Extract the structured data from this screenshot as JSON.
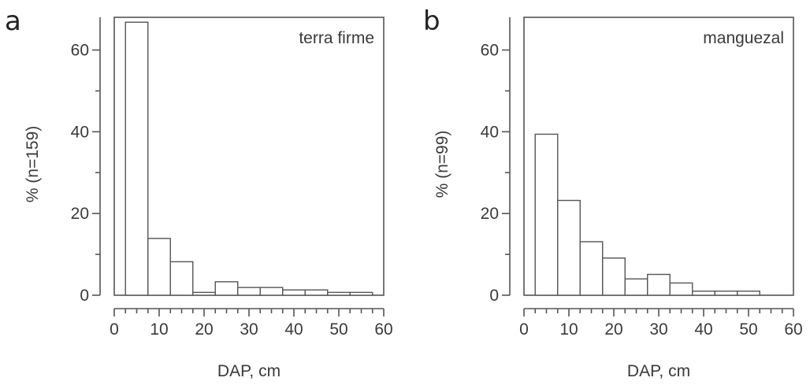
{
  "chart_data": [
    {
      "panel": "a",
      "type": "bar",
      "inset_label": "terra firme",
      "xlabel": "DAP, cm",
      "ylabel": "% (n=159)",
      "xlim": [
        0,
        60
      ],
      "ylim": [
        0,
        68
      ],
      "xticks": [
        "0",
        "10",
        "20",
        "30",
        "40",
        "50",
        "60"
      ],
      "yticks": [
        "0",
        "20",
        "40",
        "60"
      ],
      "bins": [
        [
          2.5,
          7.5
        ],
        [
          7.5,
          12.5
        ],
        [
          12.5,
          17.5
        ],
        [
          17.5,
          22.5
        ],
        [
          22.5,
          27.5
        ],
        [
          27.5,
          32.5
        ],
        [
          32.5,
          37.5
        ],
        [
          37.5,
          42.5
        ],
        [
          42.5,
          47.5
        ],
        [
          47.5,
          52.5
        ],
        [
          52.5,
          57.5
        ]
      ],
      "values": [
        66.8,
        13.9,
        8.2,
        0.7,
        3.3,
        1.9,
        1.9,
        1.3,
        1.3,
        0.7,
        0.7
      ]
    },
    {
      "panel": "b",
      "type": "bar",
      "inset_label": "manguezal",
      "xlabel": "DAP, cm",
      "ylabel": "% (n=99)",
      "xlim": [
        0,
        60
      ],
      "ylim": [
        0,
        68
      ],
      "xticks": [
        "0",
        "10",
        "20",
        "30",
        "40",
        "50",
        "60"
      ],
      "yticks": [
        "0",
        "20",
        "40",
        "60"
      ],
      "bins": [
        [
          2.5,
          7.5
        ],
        [
          7.5,
          12.5
        ],
        [
          12.5,
          17.5
        ],
        [
          17.5,
          22.5
        ],
        [
          22.5,
          27.5
        ],
        [
          27.5,
          32.5
        ],
        [
          32.5,
          37.5
        ],
        [
          37.5,
          42.5
        ],
        [
          42.5,
          47.5
        ],
        [
          47.5,
          52.5
        ],
        [
          52.5,
          57.5
        ]
      ],
      "values": [
        39.4,
        23.2,
        13.1,
        9.1,
        4.0,
        5.1,
        3.0,
        1.0,
        1.0,
        1.0,
        0
      ]
    }
  ]
}
